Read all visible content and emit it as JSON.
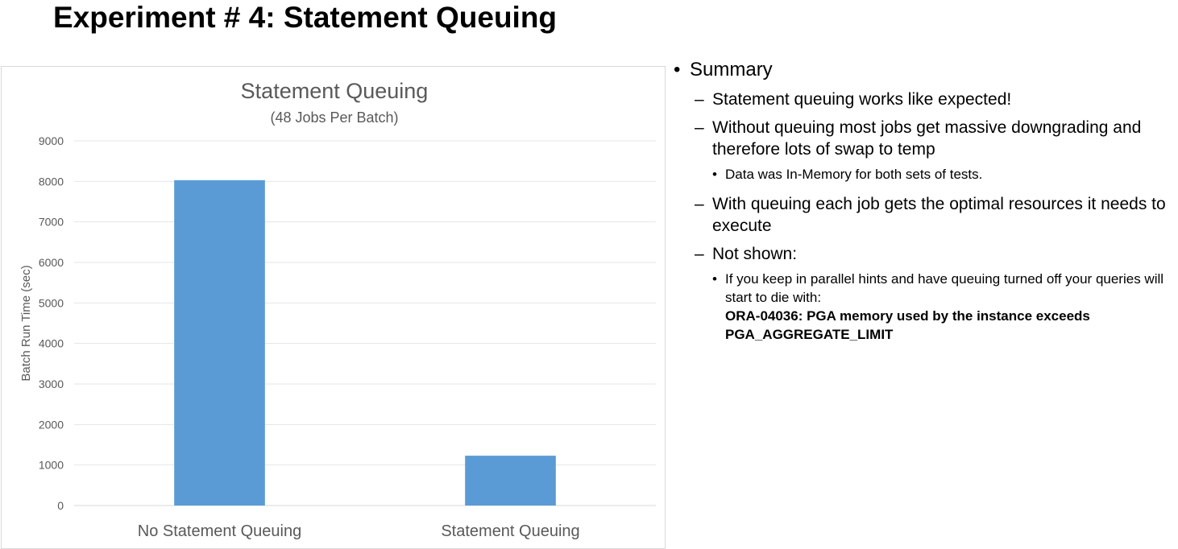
{
  "slide": {
    "title": "Experiment # 4: Statement Queuing"
  },
  "chart_data": {
    "type": "bar",
    "title": "Statement Queuing",
    "subtitle": "(48 Jobs Per Batch)",
    "xlabel": "",
    "ylabel": "Batch Run Time (sec)",
    "categories": [
      "No Statement Queuing",
      "Statement Queuing"
    ],
    "values": [
      8030,
      1230
    ],
    "ylim": [
      0,
      9000
    ],
    "yticks": [
      0,
      1000,
      2000,
      3000,
      4000,
      5000,
      6000,
      7000,
      8000,
      9000
    ],
    "grid": true,
    "legend": "none",
    "bar_color": "#5b9bd5"
  },
  "summary": {
    "heading": "Summary",
    "items": [
      {
        "text": "Statement queuing works like expected!"
      },
      {
        "text": "Without queuing most jobs get massive downgrading and therefore lots of swap to temp",
        "sub": "Data was In-Memory for both sets of tests."
      },
      {
        "text": "With queuing each job gets the optimal resources it needs to execute"
      },
      {
        "text": "Not shown:",
        "sub": "If you keep in parallel hints and have queuing turned off your queries will start to die with:",
        "sub_bold": "ORA-04036: PGA memory used by the instance exceeds PGA_AGGREGATE_LIMIT"
      }
    ],
    "dash": "–",
    "bullet": "•"
  }
}
